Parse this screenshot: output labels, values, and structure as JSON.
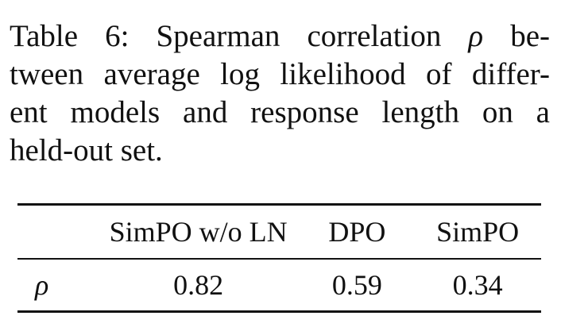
{
  "caption": {
    "line1_prefix": "Table 6:  Spearman correlation ",
    "line1_symbol": "ρ",
    "line1_suffix": " be-",
    "line2": "tween average log likelihood of differ-",
    "line3": "ent models and response length on a",
    "line4": "held-out set."
  },
  "table": {
    "headers": [
      "",
      "SimPO w/o LN",
      "DPO",
      "SimPO"
    ],
    "rows": [
      {
        "label": "ρ",
        "values": [
          "0.82",
          "0.59",
          "0.34"
        ]
      }
    ]
  }
}
